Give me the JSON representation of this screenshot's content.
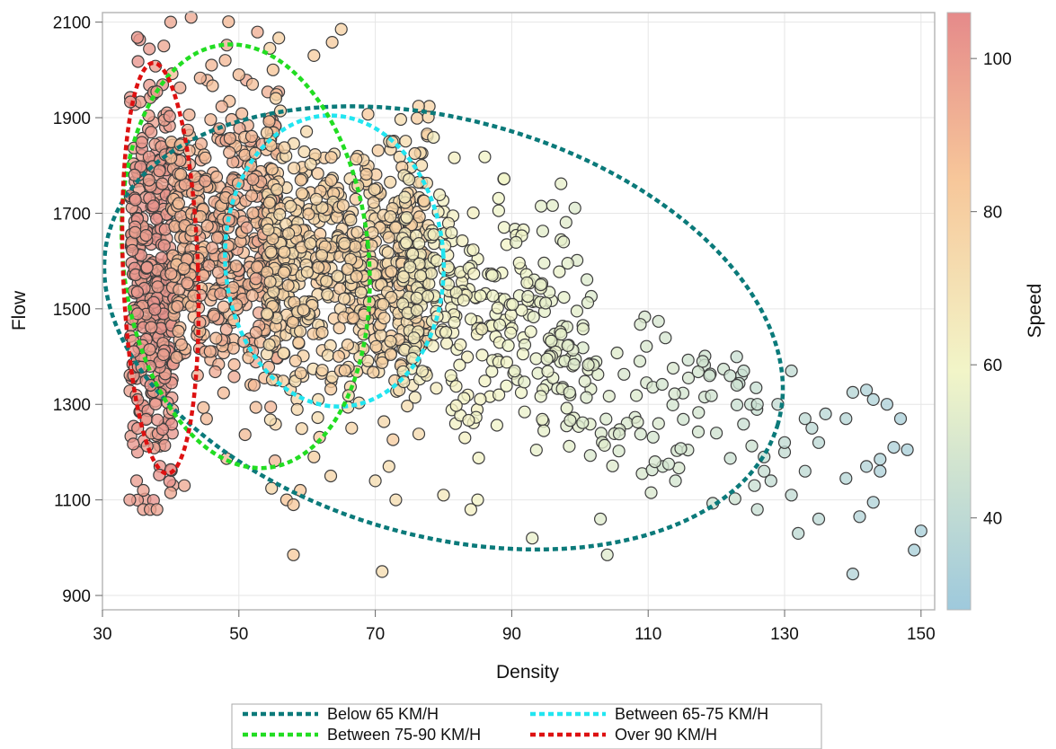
{
  "chart_data": {
    "type": "scatter",
    "xlabel": "Density",
    "ylabel": "Flow",
    "colorbar_label": "Speed",
    "xlim": [
      30,
      152
    ],
    "ylim": [
      870,
      2120
    ],
    "x_ticks": [
      "30",
      "50",
      "70",
      "90",
      "110",
      "130",
      "150"
    ],
    "y_ticks": [
      "900",
      "1100",
      "1300",
      "1500",
      "1700",
      "1900",
      "2100"
    ],
    "colorbar_ticks": [
      "40",
      "60",
      "80",
      "100"
    ],
    "colorbar_range": [
      28,
      106
    ],
    "colorscale": [
      "#9ec9dc",
      "#f2f5c8",
      "#f7c79a",
      "#e58a8a"
    ],
    "grid": true,
    "legend_position": "bottom",
    "ellipses": [
      {
        "name": "Below 65 KM/H",
        "color": "#0b7a7a",
        "cx": 80,
        "cy": 1460,
        "rx": 51,
        "ry": 435,
        "angle": -16
      },
      {
        "name": "Between 65-75 KM/H",
        "color": "#22e5f0",
        "cx": 64,
        "cy": 1600,
        "rx": 16,
        "ry": 305,
        "angle": 4
      },
      {
        "name": "Between 75-90 KM/H",
        "color": "#22dd22",
        "cx": 51,
        "cy": 1610,
        "rx": 18,
        "ry": 445,
        "angle": 6
      },
      {
        "name": "Over 90 KM/H",
        "color": "#dd1111",
        "cx": 38.5,
        "cy": 1585,
        "rx": 5.5,
        "ry": 430,
        "angle": 2
      }
    ],
    "points": [
      {
        "x": 36,
        "y": 1080,
        "s": 98
      },
      {
        "x": 37,
        "y": 1080,
        "s": 98
      },
      {
        "x": 38,
        "y": 1080,
        "s": 97
      },
      {
        "x": 34,
        "y": 1100,
        "s": 99
      },
      {
        "x": 35,
        "y": 1140,
        "s": 99
      },
      {
        "x": 36,
        "y": 1120,
        "s": 98
      },
      {
        "x": 40,
        "y": 2100,
        "s": 96
      },
      {
        "x": 43,
        "y": 2110,
        "s": 95
      },
      {
        "x": 39,
        "y": 2050,
        "s": 96
      },
      {
        "x": 42,
        "y": 1130,
        "s": 95
      },
      {
        "x": 40,
        "y": 1115,
        "s": 96
      },
      {
        "x": 46,
        "y": 2010,
        "s": 90
      },
      {
        "x": 48,
        "y": 2020,
        "s": 89
      },
      {
        "x": 50,
        "y": 1990,
        "s": 88
      },
      {
        "x": 52,
        "y": 1970,
        "s": 87
      },
      {
        "x": 55,
        "y": 2000,
        "s": 85
      },
      {
        "x": 57,
        "y": 1100,
        "s": 84
      },
      {
        "x": 58,
        "y": 1090,
        "s": 84
      },
      {
        "x": 59,
        "y": 1120,
        "s": 83
      },
      {
        "x": 58,
        "y": 985,
        "s": 82
      },
      {
        "x": 61,
        "y": 2030,
        "s": 81
      },
      {
        "x": 65,
        "y": 2085,
        "s": 78
      },
      {
        "x": 61,
        "y": 1190,
        "s": 80
      },
      {
        "x": 71,
        "y": 950,
        "s": 73
      },
      {
        "x": 70,
        "y": 1140,
        "s": 73
      },
      {
        "x": 72,
        "y": 1170,
        "s": 72
      },
      {
        "x": 73,
        "y": 1100,
        "s": 72
      },
      {
        "x": 80,
        "y": 1110,
        "s": 66
      },
      {
        "x": 84,
        "y": 1080,
        "s": 62
      },
      {
        "x": 85,
        "y": 1100,
        "s": 61
      },
      {
        "x": 93,
        "y": 1020,
        "s": 56
      },
      {
        "x": 103,
        "y": 1060,
        "s": 52
      },
      {
        "x": 104,
        "y": 985,
        "s": 52
      },
      {
        "x": 111,
        "y": 1180,
        "s": 49
      },
      {
        "x": 113,
        "y": 1175,
        "s": 48
      },
      {
        "x": 114,
        "y": 1140,
        "s": 48
      },
      {
        "x": 118,
        "y": 1390,
        "s": 47
      },
      {
        "x": 119,
        "y": 1360,
        "s": 46
      },
      {
        "x": 120,
        "y": 1240,
        "s": 46
      },
      {
        "x": 122,
        "y": 1360,
        "s": 45
      },
      {
        "x": 123,
        "y": 1340,
        "s": 45
      },
      {
        "x": 124,
        "y": 1370,
        "s": 44
      },
      {
        "x": 125,
        "y": 1300,
        "s": 44
      },
      {
        "x": 126,
        "y": 1300,
        "s": 44
      },
      {
        "x": 126,
        "y": 1080,
        "s": 43
      },
      {
        "x": 127,
        "y": 1160,
        "s": 43
      },
      {
        "x": 127,
        "y": 1190,
        "s": 43
      },
      {
        "x": 128,
        "y": 1140,
        "s": 42
      },
      {
        "x": 129,
        "y": 1300,
        "s": 42
      },
      {
        "x": 130,
        "y": 1200,
        "s": 42
      },
      {
        "x": 130,
        "y": 1220,
        "s": 41
      },
      {
        "x": 131,
        "y": 1370,
        "s": 41
      },
      {
        "x": 131,
        "y": 1110,
        "s": 41
      },
      {
        "x": 132,
        "y": 1030,
        "s": 40
      },
      {
        "x": 133,
        "y": 1160,
        "s": 40
      },
      {
        "x": 133,
        "y": 1270,
        "s": 40
      },
      {
        "x": 134,
        "y": 1250,
        "s": 39
      },
      {
        "x": 135,
        "y": 1220,
        "s": 39
      },
      {
        "x": 135,
        "y": 1060,
        "s": 39
      },
      {
        "x": 136,
        "y": 1280,
        "s": 38
      },
      {
        "x": 139,
        "y": 1145,
        "s": 37
      },
      {
        "x": 139,
        "y": 1270,
        "s": 37
      },
      {
        "x": 140,
        "y": 1325,
        "s": 37
      },
      {
        "x": 140,
        "y": 945,
        "s": 36
      },
      {
        "x": 141,
        "y": 1065,
        "s": 36
      },
      {
        "x": 142,
        "y": 1170,
        "s": 36
      },
      {
        "x": 142,
        "y": 1330,
        "s": 35
      },
      {
        "x": 143,
        "y": 1310,
        "s": 35
      },
      {
        "x": 143,
        "y": 1095,
        "s": 35
      },
      {
        "x": 144,
        "y": 1185,
        "s": 35
      },
      {
        "x": 144,
        "y": 1160,
        "s": 34
      },
      {
        "x": 145,
        "y": 1300,
        "s": 34
      },
      {
        "x": 146,
        "y": 1210,
        "s": 34
      },
      {
        "x": 147,
        "y": 1270,
        "s": 33
      },
      {
        "x": 148,
        "y": 1205,
        "s": 33
      },
      {
        "x": 149,
        "y": 995,
        "s": 32
      },
      {
        "x": 150,
        "y": 1035,
        "s": 32
      }
    ],
    "cluster_point_count": 1900,
    "cluster_description_note": ""
  },
  "legend": {
    "items": [
      {
        "label": "Below 65 KM/H",
        "color": "#0b7a7a"
      },
      {
        "label": "Between 65-75 KM/H",
        "color": "#22e5f0"
      },
      {
        "label": "Between 75-90 KM/H",
        "color": "#22dd22"
      },
      {
        "label": "Over 90 KM/H",
        "color": "#dd1111"
      }
    ]
  }
}
